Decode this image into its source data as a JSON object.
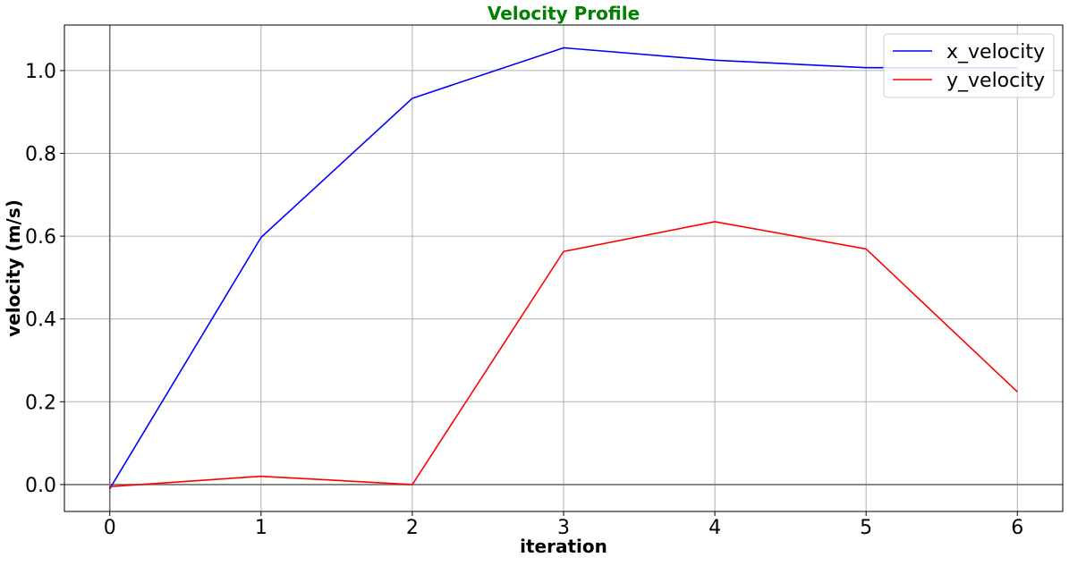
{
  "chart_data": {
    "type": "line",
    "title": "Velocity Profile",
    "title_color": "#008000",
    "xlabel": "iteration",
    "ylabel": "velocity (m/s)",
    "x": [
      0,
      1,
      2,
      3,
      4,
      5,
      6
    ],
    "series": [
      {
        "name": "x_velocity",
        "color": "#0000ff",
        "values": [
          -0.01,
          0.597,
          0.933,
          1.055,
          1.025,
          1.007,
          1.007
        ]
      },
      {
        "name": "y_velocity",
        "color": "#ff0000",
        "values": [
          -0.005,
          0.02,
          0.0,
          0.563,
          0.635,
          0.569,
          0.224
        ]
      }
    ],
    "xlim": [
      -0.3,
      6.3
    ],
    "ylim": [
      -0.065,
      1.11
    ],
    "xticks": [
      "0",
      "1",
      "2",
      "3",
      "4",
      "5",
      "6"
    ],
    "yticks": [
      "0.0",
      "0.2",
      "0.4",
      "0.6",
      "0.8",
      "1.0"
    ],
    "grid": true,
    "reference_lines": {
      "x": 0,
      "y": 0
    },
    "legend_position": "top-right"
  }
}
